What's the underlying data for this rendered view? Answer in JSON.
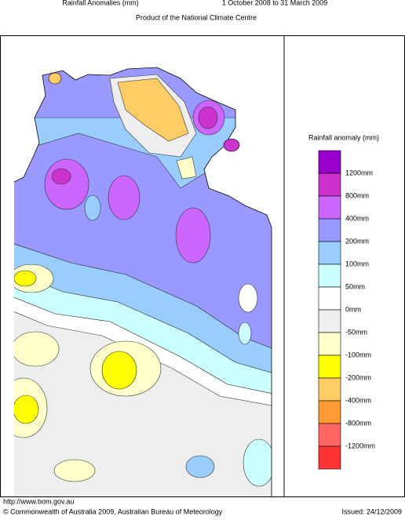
{
  "header": {
    "title": "Rainfall Anomalies (mm)",
    "period": "1 October 2008 to 31 March 2009",
    "subtitle": "Product of the National Climate Centre"
  },
  "legend": {
    "title": "Rainfall anomaly (mm)",
    "labels": [
      "1200mm",
      "800mm",
      "400mm",
      "200mm",
      "100mm",
      "50mm",
      "0mm",
      "-50mm",
      "-100mm",
      "-200mm",
      "-400mm",
      "-800mm",
      "-1200mm"
    ],
    "colors": [
      "#9900cc",
      "#cc33cc",
      "#cc66ff",
      "#9999ff",
      "#99ccff",
      "#ccffff",
      "#ffffff",
      "#eeeeee",
      "#ffffcc",
      "#ffff00",
      "#ffcc66",
      "#ff9933",
      "#ff6666",
      "#ff3333"
    ]
  },
  "footer": {
    "url": "http://www.bom.gov.au",
    "copyright": "© Commonwealth of Australia 2009, Australian Bureau of Meteorology",
    "issued": "Issued: 24/12/2009"
  }
}
